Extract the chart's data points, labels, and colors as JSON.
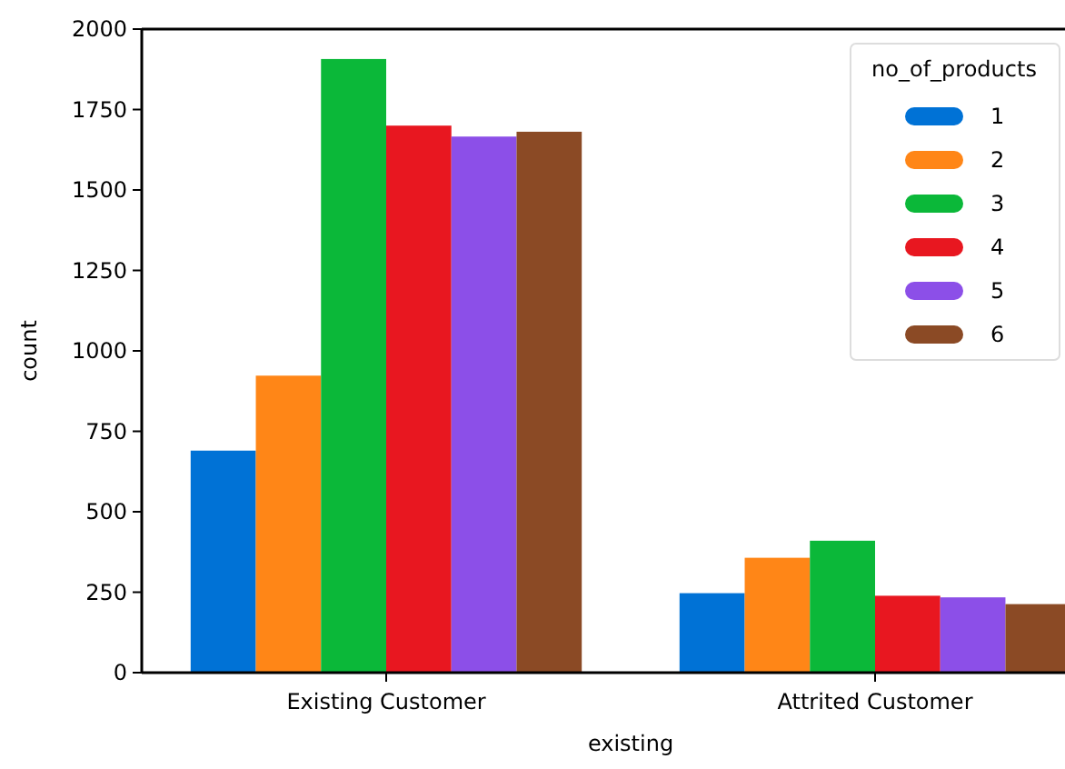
{
  "chart_data": {
    "type": "bar",
    "xlabel": "existing",
    "ylabel": "count",
    "legend_title": "no_of_products",
    "categories": [
      "Existing Customer",
      "Attrited Customer"
    ],
    "series": [
      {
        "name": "1",
        "color": "#0072d6",
        "values": [
          690,
          247
        ]
      },
      {
        "name": "2",
        "color": "#ff8617",
        "values": [
          923,
          357
        ]
      },
      {
        "name": "3",
        "color": "#0bb839",
        "values": [
          1907,
          410
        ]
      },
      {
        "name": "4",
        "color": "#e81720",
        "values": [
          1700,
          239
        ]
      },
      {
        "name": "5",
        "color": "#8c4fe8",
        "values": [
          1666,
          234
        ]
      },
      {
        "name": "6",
        "color": "#8b4a25",
        "values": [
          1681,
          213
        ]
      }
    ],
    "ylim": [
      0,
      2000
    ],
    "yticks": [
      0,
      250,
      500,
      750,
      1000,
      1250,
      1500,
      1750,
      2000
    ],
    "legend": "top right",
    "grid": false
  }
}
